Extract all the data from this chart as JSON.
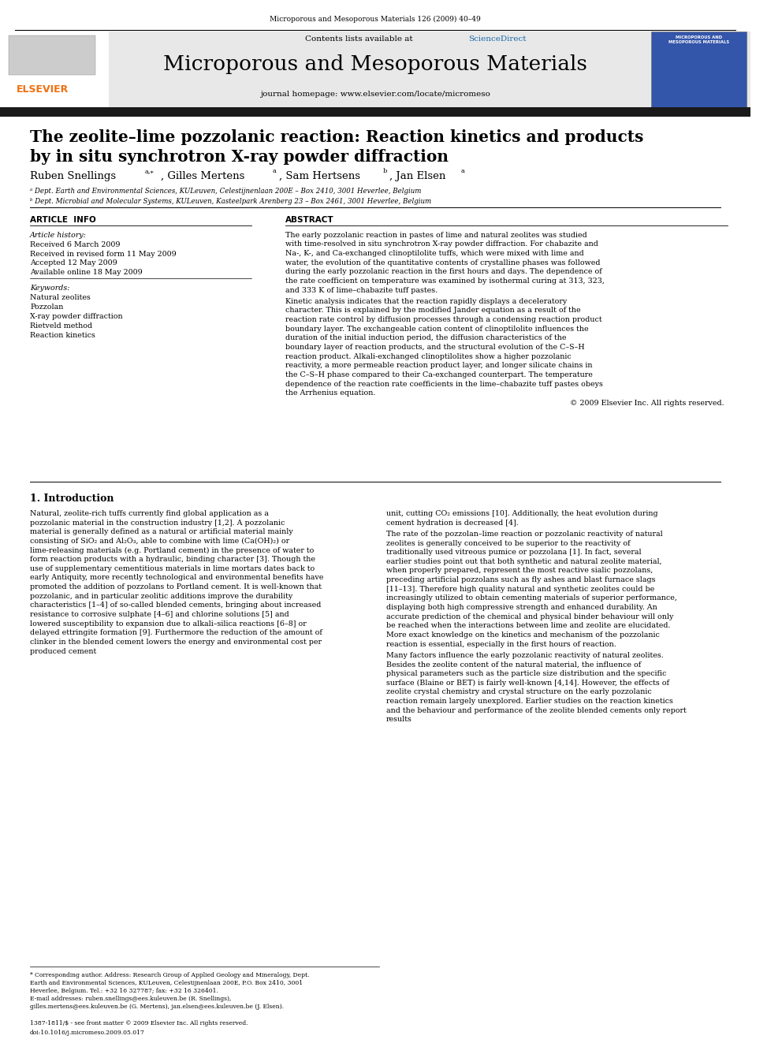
{
  "journal_line": "Microporous and Mesoporous Materials 126 (2009) 40–49",
  "journal_title": "Microporous and Mesoporous Materials",
  "journal_homepage": "journal homepage: www.elsevier.com/locate/micromeso",
  "contents_line": "Contents lists available at ",
  "sciencedirect_text": "ScienceDirect",
  "article_title_line1": "The zeolite–lime pozzolanic reaction: Reaction kinetics and products",
  "article_title_line2": "by in situ synchrotron X-ray powder diffraction",
  "affil_a": "ᵃ Dept. Earth and Environmental Sciences, KULeuven, Celestijnenlaan 200E – Box 2410, 3001 Heverlee, Belgium",
  "affil_b": "ᵇ Dept. Microbial and Molecular Systems, KULeuven, Kasteelpark Arenberg 23 – Box 2461, 3001 Heverlee, Belgium",
  "article_info_header": "ARTICLE  INFO",
  "abstract_header": "ABSTRACT",
  "article_history_label": "Article history:",
  "received": "Received 6 March 2009",
  "received_revised": "Received in revised form 11 May 2009",
  "accepted": "Accepted 12 May 2009",
  "available_online": "Available online 18 May 2009",
  "keywords_label": "Keywords:",
  "keywords": [
    "Natural zeolites",
    "Pozzolan",
    "X-ray powder diffraction",
    "Rietveld method",
    "Reaction kinetics"
  ],
  "abstract_p1": "The early pozzolanic reaction in pastes of lime and natural zeolites was studied with time-resolved in situ synchrotron X-ray powder diffraction. For chabazite and Na-, K-, and Ca-exchanged clinoptilolite tuffs, which were mixed with lime and water, the evolution of the quantitative contents of crystalline phases was followed during the early pozzolanic reaction in the first hours and days. The dependence of the rate coefficient on temperature was examined by isothermal curing at 313, 323, and 333 K of lime–chabazite tuff pastes.",
  "abstract_p2": "    Kinetic analysis indicates that the reaction rapidly displays a deceleratory character. This is explained by the modified Jander equation as a result of the reaction rate control by diffusion processes through a condensing reaction product boundary layer. The exchangeable cation content of clinoptilolite influences the duration of the initial induction period, the diffusion characteristics of the boundary layer of reaction products, and the structural evolution of the C–S–H reaction product. Alkali-exchanged clinoptilolites show a higher pozzolanic reactivity, a more permeable reaction product layer, and longer silicate chains in the C–S–H phase compared to their Ca-exchanged counterpart. The temperature dependence of the reaction rate coefficients in the lime–chabazite tuff pastes obeys the Arrhenius equation.",
  "abstract_copyright": "© 2009 Elsevier Inc. All rights reserved.",
  "intro_header": "1. Introduction",
  "intro_p1_left": "    Natural, zeolite-rich tuffs currently find global application as a pozzolanic material in the construction industry [1,2]. A pozzolanic material is generally defined as a natural or artificial material mainly consisting of SiO₂ and Al₂O₃, able to combine with lime (Ca(OH)₂) or lime-releasing materials (e.g. Portland cement) in the presence of water to form reaction products with a hydraulic, binding character [3]. Though the use of supplementary cementitious materials in lime mortars dates back to early Antiquity, more recently technological and environmental benefits have promoted the addition of pozzolans to Portland cement. It is well-known that pozzolanic, and in particular zeolitic additions improve the durability characteristics [1–4] of so-called blended cements, bringing about increased resistance to corrosive sulphate [4–6] and chlorine solutions [5] and lowered susceptibility to expansion due to alkali–silica reactions [6–8] or delayed ettringite formation [9]. Furthermore the reduction of the amount of clinker in the blended cement lowers the energy and environmental cost per produced cement",
  "intro_p1_right": "unit, cutting CO₂ emissions [10]. Additionally, the heat evolution during cement hydration is decreased [4].",
  "intro_p2_right": "    The rate of the pozzolan–lime reaction or pozzolanic reactivity of natural zeolites is generally conceived to be superior to the reactivity of traditionally used vitreous pumice or pozzolana [1]. In fact, several earlier studies point out that both synthetic and natural zeolite material, when properly prepared, represent the most reactive sialic pozzolans, preceding artificial pozzolans such as fly ashes and blast furnace slags [11–13]. Therefore high quality natural and synthetic zeolites could be increasingly utilized to obtain cementing materials of superior performance, displaying both high compressive strength and enhanced durability. An accurate prediction of the chemical and physical binder behaviour will only be reached when the interactions between lime and zeolite are elucidated. More exact knowledge on the kinetics and mechanism of the pozzolanic reaction is essential, especially in the first hours of reaction.",
  "intro_p3_right": "    Many factors influence the early pozzolanic reactivity of natural zeolites. Besides the zeolite content of the natural material, the influence of physical parameters such as the particle size distribution and the specific surface (Blaine or BET) is fairly well-known [4,14]. However, the effects of zeolite crystal chemistry and crystal structure on the early pozzolanic reaction remain largely unexplored. Earlier studies on the reaction kinetics and the behaviour and performance of the zeolite blended cements only report results",
  "footnote_star": "* Corresponding author. Address: Research Group of Applied Geology and Mineralogy, Dept. Earth and Environmental Sciences, KULeuven, Celestijnenlaan 200E, P.O. Box 2410, 3001 Heverlee, Belgium. Tel.: +32 16 327787; fax: +32 16 326401.",
  "email_line": "E-mail addresses: ruben.snellings@ees.kuleuven.be (R. Snellings), gilles.mertens@ees.kuleuven.be (G. Mertens), jan.elsen@ees.kuleuven.be (J. Elsen).",
  "issn_line": "1387-1811/$ - see front matter © 2009 Elsevier Inc. All rights reserved.",
  "doi_line": "doi:10.1016/j.micromeso.2009.05.017",
  "bg_color": "#ffffff",
  "header_bg": "#e8e8e8",
  "dark_bar_color": "#1a1a1a",
  "elsevier_orange": "#f07010",
  "sciencedirect_blue": "#1a6aaa"
}
